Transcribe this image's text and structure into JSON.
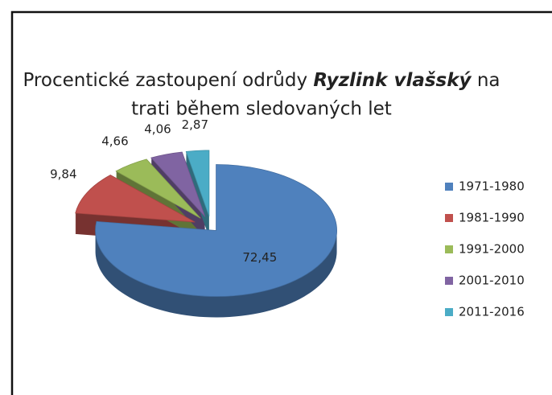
{
  "chart_data": {
    "type": "pie",
    "title": [
      "Procentické zastoupení odrůdy",
      "Ryzlink vlašský",
      "na",
      "trati během sledovaných let"
    ],
    "categories": [
      "1971-1980",
      "1981-1990",
      "1991-2000",
      "2001-2010",
      "2011-2016"
    ],
    "values": [
      72.45,
      9.84,
      4.66,
      4.06,
      2.87
    ],
    "value_labels": [
      "72,45",
      "9,84",
      "4,66",
      "4,06",
      "2,87"
    ],
    "colors": [
      "#4f81bd",
      "#c0504d",
      "#9bbb59",
      "#8064a2",
      "#4bacc6"
    ],
    "legend": "right"
  }
}
